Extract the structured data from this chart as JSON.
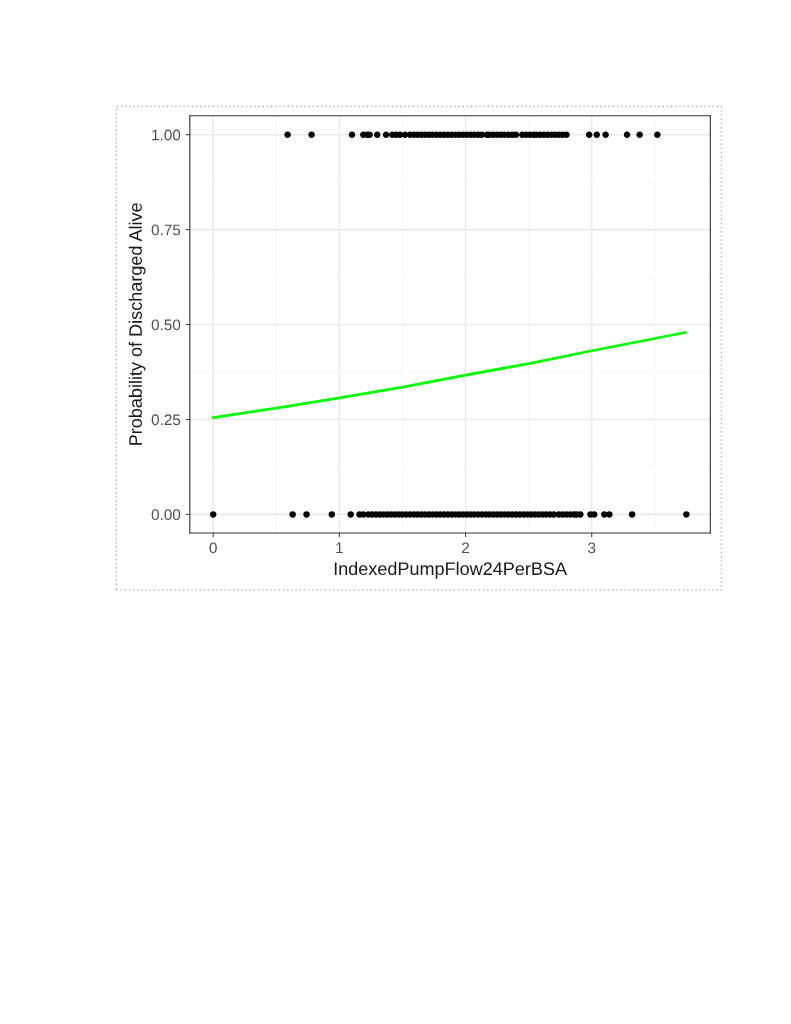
{
  "chart_data": {
    "type": "scatter",
    "xlabel": "IndexedPumpFlow24PerBSA",
    "ylabel": "Probability of Discharged Alive",
    "xlim": [
      -0.185,
      3.94
    ],
    "xticks": [
      0,
      1,
      2,
      3
    ],
    "ylim": [
      -0.049,
      1.05
    ],
    "yticks": [
      {
        "value": 0,
        "label": "0.00"
      },
      {
        "value": 0.25,
        "label": "0.25"
      },
      {
        "value": 0.5,
        "label": "0.50"
      },
      {
        "value": 0.75,
        "label": "0.75"
      },
      {
        "value": 1,
        "label": "1.00"
      }
    ],
    "grid": true,
    "series": [
      {
        "marker": "circle",
        "color": "#000000",
        "x": [
          0.59,
          0.78,
          1.1,
          1.19,
          1.22,
          1.24,
          1.3,
          1.37,
          1.42,
          1.45,
          1.48,
          1.52,
          1.56,
          1.59,
          1.62,
          1.65,
          1.68,
          1.71,
          1.74,
          1.77,
          1.8,
          1.83,
          1.86,
          1.89,
          1.92,
          1.95,
          1.98,
          2.01,
          2.04,
          2.07,
          2.1,
          2.13,
          2.17,
          2.19,
          2.22,
          2.25,
          2.28,
          2.31,
          2.34,
          2.37,
          2.4,
          2.45,
          2.48,
          2.51,
          2.54,
          2.56,
          2.59,
          2.62,
          2.65,
          2.68,
          2.71,
          2.74,
          2.77,
          2.8,
          2.98,
          3.04,
          3.11,
          3.28,
          3.38,
          3.52
        ],
        "values": [
          1,
          1,
          1,
          1,
          1,
          1,
          1,
          1,
          1,
          1,
          1,
          1,
          1,
          1,
          1,
          1,
          1,
          1,
          1,
          1,
          1,
          1,
          1,
          1,
          1,
          1,
          1,
          1,
          1,
          1,
          1,
          1,
          1,
          1,
          1,
          1,
          1,
          1,
          1,
          1,
          1,
          1,
          1,
          1,
          1,
          1,
          1,
          1,
          1,
          1,
          1,
          1,
          1,
          1,
          1,
          1,
          1,
          1,
          1,
          1
        ]
      },
      {
        "marker": "circle",
        "color": "#000000",
        "x": [
          0,
          0.63,
          0.74,
          0.94,
          1.09,
          1.16,
          1.19,
          1.23,
          1.26,
          1.29,
          1.32,
          1.35,
          1.38,
          1.41,
          1.44,
          1.47,
          1.5,
          1.53,
          1.56,
          1.59,
          1.62,
          1.65,
          1.68,
          1.71,
          1.74,
          1.77,
          1.8,
          1.83,
          1.86,
          1.89,
          1.92,
          1.95,
          1.98,
          2.01,
          2.04,
          2.07,
          2.1,
          2.13,
          2.16,
          2.19,
          2.22,
          2.25,
          2.28,
          2.31,
          2.34,
          2.37,
          2.4,
          2.43,
          2.46,
          2.49,
          2.52,
          2.55,
          2.58,
          2.61,
          2.64,
          2.67,
          2.7,
          2.74,
          2.77,
          2.8,
          2.83,
          2.86,
          2.88,
          2.91,
          2.99,
          3.02,
          3.1,
          3.14,
          3.32,
          3.75
        ],
        "values": [
          0,
          0,
          0,
          0,
          0,
          0,
          0,
          0,
          0,
          0,
          0,
          0,
          0,
          0,
          0,
          0,
          0,
          0,
          0,
          0,
          0,
          0,
          0,
          0,
          0,
          0,
          0,
          0,
          0,
          0,
          0,
          0,
          0,
          0,
          0,
          0,
          0,
          0,
          0,
          0,
          0,
          0,
          0,
          0,
          0,
          0,
          0,
          0,
          0,
          0,
          0,
          0,
          0,
          0,
          0,
          0,
          0,
          0,
          0,
          0,
          0,
          0,
          0,
          0,
          0,
          0,
          0,
          0,
          0,
          0
        ]
      },
      {
        "type": "line",
        "color": "#00ff00",
        "x": [
          0,
          0.5,
          1,
          1.5,
          2,
          2.5,
          3,
          3.74
        ],
        "values": [
          0.255,
          0.28,
          0.307,
          0.335,
          0.367,
          0.397,
          0.431,
          0.479
        ]
      }
    ]
  }
}
